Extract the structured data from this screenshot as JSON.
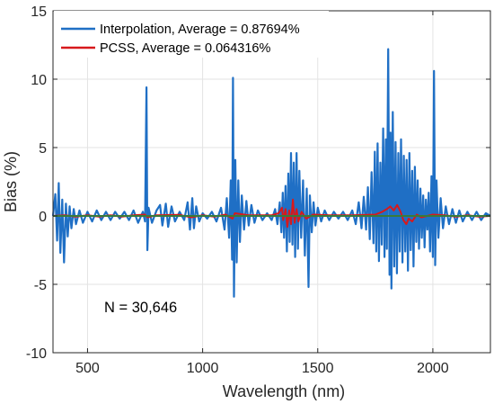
{
  "chart_data": {
    "type": "line",
    "title": "",
    "xlabel": "Wavelength (nm)",
    "ylabel": "Bias (%)",
    "xlim": [
      350,
      2250
    ],
    "ylim": [
      -10,
      15
    ],
    "xticks": [
      500,
      1000,
      1500,
      2000
    ],
    "yticks": [
      -10,
      -5,
      0,
      5,
      10,
      15
    ],
    "grid": true,
    "legend_position": "top-left",
    "annotation": "N = 30,646",
    "series": [
      {
        "name": "Interpolation, Average = 0.87694%",
        "color": "#1f6fc5",
        "points": [
          [
            350,
            0
          ],
          [
            360,
            1.6
          ],
          [
            368,
            -1.8
          ],
          [
            375,
            2.4
          ],
          [
            382,
            -2.7
          ],
          [
            390,
            1.2
          ],
          [
            398,
            -3.4
          ],
          [
            406,
            0.9
          ],
          [
            414,
            -1.5
          ],
          [
            422,
            0.7
          ],
          [
            430,
            -0.9
          ],
          [
            440,
            0.5
          ],
          [
            450,
            -0.6
          ],
          [
            465,
            0.4
          ],
          [
            480,
            -0.5
          ],
          [
            500,
            0.3
          ],
          [
            520,
            -0.4
          ],
          [
            540,
            0.4
          ],
          [
            560,
            -0.3
          ],
          [
            580,
            0.3
          ],
          [
            600,
            -0.3
          ],
          [
            620,
            0.3
          ],
          [
            640,
            -0.2
          ],
          [
            660,
            0.3
          ],
          [
            680,
            -0.3
          ],
          [
            700,
            0.4
          ],
          [
            720,
            -0.5
          ],
          [
            740,
            0.3
          ],
          [
            750,
            -0.4
          ],
          [
            756,
            9.4
          ],
          [
            760,
            -2.5
          ],
          [
            765,
            0.6
          ],
          [
            780,
            -0.5
          ],
          [
            800,
            0.4
          ],
          [
            815,
            0.8
          ],
          [
            825,
            -0.7
          ],
          [
            840,
            0.9
          ],
          [
            850,
            -0.8
          ],
          [
            865,
            0.7
          ],
          [
            880,
            -0.4
          ],
          [
            900,
            0.3
          ],
          [
            920,
            -0.3
          ],
          [
            935,
            1.0
          ],
          [
            945,
            -1.0
          ],
          [
            955,
            1.3
          ],
          [
            962,
            -0.9
          ],
          [
            972,
            0.7
          ],
          [
            985,
            -0.4
          ],
          [
            1000,
            0.2
          ],
          [
            1020,
            -0.2
          ],
          [
            1040,
            0.3
          ],
          [
            1060,
            -0.4
          ],
          [
            1080,
            0.6
          ],
          [
            1095,
            -1.0
          ],
          [
            1105,
            1.3
          ],
          [
            1115,
            -1.6
          ],
          [
            1122,
            2.6
          ],
          [
            1128,
            -3.2
          ],
          [
            1132,
            10.1
          ],
          [
            1136,
            -5.9
          ],
          [
            1142,
            4.1
          ],
          [
            1148,
            -3.4
          ],
          [
            1155,
            2.6
          ],
          [
            1162,
            -1.9
          ],
          [
            1170,
            1.5
          ],
          [
            1180,
            -1.0
          ],
          [
            1190,
            1.1
          ],
          [
            1200,
            -0.7
          ],
          [
            1212,
            0.8
          ],
          [
            1225,
            -0.5
          ],
          [
            1240,
            0.4
          ],
          [
            1260,
            -0.3
          ],
          [
            1280,
            0.2
          ],
          [
            1300,
            -0.3
          ],
          [
            1315,
            0.5
          ],
          [
            1325,
            -0.6
          ],
          [
            1335,
            1.0
          ],
          [
            1342,
            -1.2
          ],
          [
            1348,
            1.7
          ],
          [
            1354,
            -1.6
          ],
          [
            1360,
            2.2
          ],
          [
            1366,
            -2.6
          ],
          [
            1372,
            3.1
          ],
          [
            1378,
            -1.9
          ],
          [
            1384,
            4.6
          ],
          [
            1390,
            -2.1
          ],
          [
            1396,
            3.9
          ],
          [
            1402,
            -3.0
          ],
          [
            1408,
            4.6
          ],
          [
            1414,
            -2.4
          ],
          [
            1420,
            3.3
          ],
          [
            1428,
            -1.6
          ],
          [
            1436,
            2.6
          ],
          [
            1444,
            -2.9
          ],
          [
            1452,
            2.0
          ],
          [
            1460,
            -5.2
          ],
          [
            1466,
            1.5
          ],
          [
            1474,
            -1.2
          ],
          [
            1482,
            1.0
          ],
          [
            1490,
            -0.7
          ],
          [
            1500,
            0.6
          ],
          [
            1515,
            -0.4
          ],
          [
            1530,
            0.4
          ],
          [
            1550,
            -0.3
          ],
          [
            1570,
            0.3
          ],
          [
            1590,
            -0.2
          ],
          [
            1610,
            0.3
          ],
          [
            1630,
            -0.3
          ],
          [
            1650,
            0.4
          ],
          [
            1665,
            -0.6
          ],
          [
            1678,
            1.0
          ],
          [
            1690,
            -0.9
          ],
          [
            1700,
            1.4
          ],
          [
            1710,
            -1.0
          ],
          [
            1718,
            2.1
          ],
          [
            1726,
            -1.7
          ],
          [
            1734,
            3.2
          ],
          [
            1742,
            -2.0
          ],
          [
            1748,
            4.7
          ],
          [
            1754,
            -2.6
          ],
          [
            1760,
            5.3
          ],
          [
            1766,
            -3.3
          ],
          [
            1772,
            3.9
          ],
          [
            1778,
            -2.1
          ],
          [
            1784,
            6.4
          ],
          [
            1790,
            -3.0
          ],
          [
            1796,
            5.6
          ],
          [
            1800,
            -2.4
          ],
          [
            1806,
            12.2
          ],
          [
            1812,
            -4.3
          ],
          [
            1816,
            6.1
          ],
          [
            1820,
            -5.3
          ],
          [
            1826,
            7.6
          ],
          [
            1832,
            -3.7
          ],
          [
            1838,
            5.4
          ],
          [
            1844,
            -4.2
          ],
          [
            1850,
            4.6
          ],
          [
            1856,
            -2.6
          ],
          [
            1862,
            5.6
          ],
          [
            1868,
            -3.4
          ],
          [
            1874,
            4.4
          ],
          [
            1880,
            -2.6
          ],
          [
            1886,
            4.1
          ],
          [
            1892,
            -4.0
          ],
          [
            1898,
            4.6
          ],
          [
            1904,
            -2.5
          ],
          [
            1910,
            3.3
          ],
          [
            1916,
            -3.7
          ],
          [
            1922,
            3.6
          ],
          [
            1928,
            -1.9
          ],
          [
            1934,
            2.6
          ],
          [
            1940,
            -2.4
          ],
          [
            1946,
            2.0
          ],
          [
            1952,
            -1.6
          ],
          [
            1958,
            1.5
          ],
          [
            1964,
            -2.3
          ],
          [
            1970,
            1.2
          ],
          [
            1976,
            -1.0
          ],
          [
            1982,
            1.7
          ],
          [
            1988,
            -2.6
          ],
          [
            1994,
            2.9
          ],
          [
            2000,
            -3.0
          ],
          [
            2005,
            10.6
          ],
          [
            2010,
            -3.6
          ],
          [
            2016,
            2.6
          ],
          [
            2024,
            -1.6
          ],
          [
            2034,
            1.3
          ],
          [
            2044,
            -0.9
          ],
          [
            2056,
            0.7
          ],
          [
            2070,
            -0.6
          ],
          [
            2085,
            0.5
          ],
          [
            2100,
            -0.5
          ],
          [
            2115,
            0.4
          ],
          [
            2130,
            -0.4
          ],
          [
            2150,
            0.3
          ],
          [
            2170,
            -0.3
          ],
          [
            2190,
            0.3
          ],
          [
            2210,
            -0.3
          ],
          [
            2230,
            0.2
          ],
          [
            2250,
            0
          ]
        ]
      },
      {
        "name": "PCSS, Average = 0.064316%",
        "color": "#d7191c",
        "points": [
          [
            350,
            0
          ],
          [
            400,
            0.05
          ],
          [
            450,
            -0.05
          ],
          [
            500,
            0.05
          ],
          [
            550,
            -0.05
          ],
          [
            600,
            0.05
          ],
          [
            650,
            -0.05
          ],
          [
            700,
            0.05
          ],
          [
            750,
            0.1
          ],
          [
            760,
            -0.1
          ],
          [
            800,
            0.05
          ],
          [
            900,
            0.08
          ],
          [
            950,
            -0.1
          ],
          [
            1000,
            0.05
          ],
          [
            1050,
            -0.05
          ],
          [
            1100,
            0.1
          ],
          [
            1130,
            -0.2
          ],
          [
            1140,
            0.2
          ],
          [
            1200,
            0.05
          ],
          [
            1300,
            0.05
          ],
          [
            1330,
            0.2
          ],
          [
            1345,
            0.6
          ],
          [
            1350,
            -0.3
          ],
          [
            1360,
            0.5
          ],
          [
            1368,
            -0.8
          ],
          [
            1376,
            0.4
          ],
          [
            1384,
            -0.6
          ],
          [
            1392,
            1.2
          ],
          [
            1400,
            -0.5
          ],
          [
            1408,
            0.5
          ],
          [
            1416,
            -0.4
          ],
          [
            1430,
            0.3
          ],
          [
            1450,
            -0.2
          ],
          [
            1480,
            0.1
          ],
          [
            1550,
            0.05
          ],
          [
            1650,
            0.05
          ],
          [
            1750,
            0.1
          ],
          [
            1780,
            0.3
          ],
          [
            1800,
            0.5
          ],
          [
            1815,
            0.7
          ],
          [
            1830,
            0.4
          ],
          [
            1845,
            0.8
          ],
          [
            1860,
            0.3
          ],
          [
            1872,
            -0.3
          ],
          [
            1885,
            -0.6
          ],
          [
            1895,
            -0.2
          ],
          [
            1910,
            -0.4
          ],
          [
            1930,
            0.1
          ],
          [
            1950,
            -0.1
          ],
          [
            2000,
            0.1
          ],
          [
            2050,
            0.05
          ],
          [
            2100,
            -0.05
          ],
          [
            2150,
            0.05
          ],
          [
            2200,
            -0.05
          ],
          [
            2250,
            0
          ]
        ]
      },
      {
        "color": "#3a7a3a",
        "points": [
          [
            350,
            0
          ],
          [
            2250,
            0
          ]
        ]
      }
    ]
  }
}
